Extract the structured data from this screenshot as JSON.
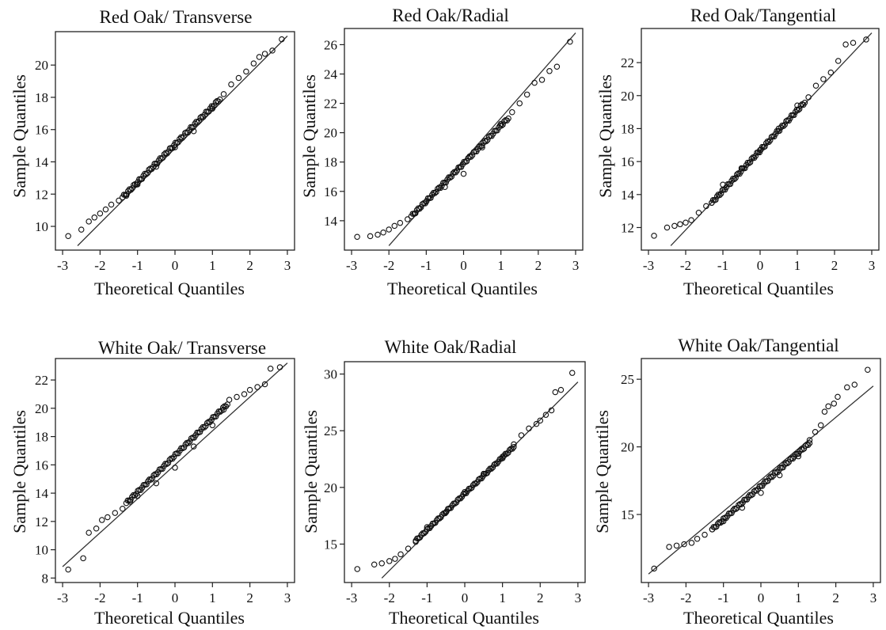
{
  "chart_data": [
    {
      "type": "scatter",
      "title": "Red Oak/ Transverse",
      "xlabel": "Theoretical Quantiles",
      "ylabel": "Sample Quantiles",
      "xlim": [
        -3,
        3
      ],
      "ylim": [
        8.8,
        21.8
      ],
      "xticks": [
        -3,
        -2,
        -1,
        0,
        1,
        2,
        3
      ],
      "yticks": [
        10,
        12,
        14,
        16,
        18,
        20
      ],
      "reference_line": [
        [
          -2.6,
          8.8
        ],
        [
          3.0,
          21.8
        ]
      ],
      "points": [
        [
          -2.85,
          9.4
        ],
        [
          -2.5,
          9.8
        ],
        [
          -2.3,
          10.3
        ],
        [
          -2.15,
          10.55
        ],
        [
          -2.0,
          10.8
        ],
        [
          -1.85,
          11.05
        ],
        [
          -1.7,
          11.35
        ],
        [
          -1.5,
          11.6
        ],
        [
          -1.3,
          11.9
        ],
        [
          -1.0,
          12.6
        ],
        [
          -0.5,
          13.7
        ],
        [
          0.0,
          14.9
        ],
        [
          0.5,
          15.9
        ],
        [
          1.0,
          17.3
        ],
        [
          1.3,
          18.2
        ],
        [
          1.5,
          18.8
        ],
        [
          1.7,
          19.2
        ],
        [
          1.9,
          19.6
        ],
        [
          2.1,
          20.1
        ],
        [
          2.25,
          20.5
        ],
        [
          2.4,
          20.7
        ],
        [
          2.6,
          20.9
        ],
        [
          2.85,
          21.6
        ]
      ],
      "dense_segments": [
        [
          -1.4,
          11.8,
          1.2,
          17.9
        ]
      ]
    },
    {
      "type": "scatter",
      "title": "Red Oak/Radial",
      "xlabel": "Theoretical Quantiles",
      "ylabel": "Sample Quantiles",
      "xlim": [
        -3,
        3
      ],
      "ylim": [
        12.3,
        26.8
      ],
      "xticks": [
        -3,
        -2,
        -1,
        0,
        1,
        2,
        3
      ],
      "yticks": [
        14,
        16,
        18,
        20,
        22,
        24,
        26
      ],
      "reference_line": [
        [
          -2.0,
          12.3
        ],
        [
          3.0,
          26.8
        ]
      ],
      "points": [
        [
          -2.85,
          12.9
        ],
        [
          -2.5,
          12.95
        ],
        [
          -2.3,
          13.05
        ],
        [
          -2.15,
          13.2
        ],
        [
          -2.0,
          13.4
        ],
        [
          -1.85,
          13.65
        ],
        [
          -1.7,
          13.85
        ],
        [
          -1.5,
          14.1
        ],
        [
          -1.3,
          14.5
        ],
        [
          -1.0,
          15.3
        ],
        [
          -0.5,
          16.3
        ],
        [
          0.0,
          17.2
        ],
        [
          0.5,
          19.0
        ],
        [
          1.0,
          20.6
        ],
        [
          1.3,
          21.4
        ],
        [
          1.5,
          22.0
        ],
        [
          1.7,
          22.6
        ],
        [
          1.9,
          23.4
        ],
        [
          2.1,
          23.6
        ],
        [
          2.3,
          24.2
        ],
        [
          2.5,
          24.5
        ],
        [
          2.85,
          26.2
        ]
      ],
      "dense_segments": [
        [
          -1.4,
          14.3,
          1.2,
          21.0
        ]
      ]
    },
    {
      "type": "scatter",
      "title": "Red Oak/Tangential",
      "xlabel": "Theoretical Quantiles",
      "ylabel": "Sample Quantiles",
      "xlim": [
        -3,
        3
      ],
      "ylim": [
        10.9,
        23.8
      ],
      "xticks": [
        -3,
        -2,
        -1,
        0,
        1,
        2,
        3
      ],
      "yticks": [
        12,
        14,
        16,
        18,
        20,
        22
      ],
      "reference_line": [
        [
          -2.4,
          10.9
        ],
        [
          3.0,
          23.8
        ]
      ],
      "points": [
        [
          -2.85,
          11.5
        ],
        [
          -2.5,
          12.0
        ],
        [
          -2.3,
          12.1
        ],
        [
          -2.15,
          12.2
        ],
        [
          -2.0,
          12.3
        ],
        [
          -1.85,
          12.45
        ],
        [
          -1.65,
          12.9
        ],
        [
          -1.45,
          13.3
        ],
        [
          -1.3,
          13.5
        ],
        [
          -1.0,
          14.6
        ],
        [
          -0.5,
          15.6
        ],
        [
          0.0,
          16.7
        ],
        [
          0.5,
          18.0
        ],
        [
          1.0,
          19.4
        ],
        [
          1.3,
          19.9
        ],
        [
          1.5,
          20.6
        ],
        [
          1.7,
          21.0
        ],
        [
          1.9,
          21.4
        ],
        [
          2.1,
          22.1
        ],
        [
          2.3,
          23.1
        ],
        [
          2.5,
          23.2
        ],
        [
          2.85,
          23.4
        ]
      ],
      "dense_segments": [
        [
          -1.3,
          13.5,
          1.2,
          19.6
        ]
      ]
    },
    {
      "type": "scatter",
      "title": "White Oak/ Transverse",
      "xlabel": "Theoretical Quantiles",
      "ylabel": "Sample Quantiles",
      "xlim": [
        -3,
        3
      ],
      "ylim": [
        8.0,
        23.2
      ],
      "xticks": [
        -3,
        -2,
        -1,
        0,
        1,
        2,
        3
      ],
      "yticks": [
        8,
        10,
        12,
        14,
        16,
        18,
        20,
        22
      ],
      "reference_line": [
        [
          -3.0,
          8.8
        ],
        [
          3.0,
          23.2
        ]
      ],
      "points": [
        [
          -2.85,
          8.6
        ],
        [
          -2.45,
          9.4
        ],
        [
          -2.3,
          11.2
        ],
        [
          -2.1,
          11.5
        ],
        [
          -1.95,
          12.1
        ],
        [
          -1.8,
          12.3
        ],
        [
          -1.6,
          12.6
        ],
        [
          -1.4,
          12.9
        ],
        [
          -1.2,
          13.4
        ],
        [
          -1.0,
          13.8
        ],
        [
          -0.5,
          14.7
        ],
        [
          0.0,
          15.8
        ],
        [
          0.5,
          17.3
        ],
        [
          1.0,
          18.8
        ],
        [
          1.3,
          19.9
        ],
        [
          1.45,
          20.6
        ],
        [
          1.65,
          20.8
        ],
        [
          1.85,
          21.0
        ],
        [
          2.0,
          21.3
        ],
        [
          2.2,
          21.5
        ],
        [
          2.4,
          21.7
        ],
        [
          2.55,
          22.8
        ],
        [
          2.8,
          22.9
        ]
      ],
      "dense_segments": [
        [
          -1.3,
          13.3,
          1.4,
          20.3
        ]
      ]
    },
    {
      "type": "scatter",
      "title": "White Oak/Radial",
      "xlabel": "Theoretical Quantiles",
      "ylabel": "Sample Quantiles",
      "xlim": [
        -3,
        3
      ],
      "ylim": [
        12.0,
        30.7
      ],
      "xticks": [
        -3,
        -2,
        -1,
        0,
        1,
        2,
        3
      ],
      "yticks": [
        15,
        20,
        25,
        30
      ],
      "reference_line": [
        [
          -2.2,
          12.0
        ],
        [
          3.0,
          29.3
        ]
      ],
      "points": [
        [
          -2.85,
          12.8
        ],
        [
          -2.4,
          13.2
        ],
        [
          -2.2,
          13.3
        ],
        [
          -2.0,
          13.5
        ],
        [
          -1.85,
          13.7
        ],
        [
          -1.7,
          14.1
        ],
        [
          -1.5,
          14.6
        ],
        [
          -1.3,
          15.2
        ],
        [
          -1.0,
          16.5
        ],
        [
          -0.5,
          17.8
        ],
        [
          0.0,
          19.6
        ],
        [
          0.5,
          21.2
        ],
        [
          1.0,
          22.7
        ],
        [
          1.3,
          23.8
        ],
        [
          1.5,
          24.6
        ],
        [
          1.7,
          25.2
        ],
        [
          1.9,
          25.6
        ],
        [
          2.0,
          25.9
        ],
        [
          2.15,
          26.4
        ],
        [
          2.3,
          26.8
        ],
        [
          2.4,
          28.4
        ],
        [
          2.55,
          28.6
        ],
        [
          2.85,
          30.1
        ]
      ],
      "dense_segments": [
        [
          -1.3,
          15.3,
          1.3,
          23.6
        ]
      ]
    },
    {
      "type": "scatter",
      "title": "White Oak/Tangential",
      "xlabel": "Theoretical Quantiles",
      "ylabel": "Sample Quantiles",
      "xlim": [
        -3,
        3
      ],
      "ylim": [
        10.3,
        26.2
      ],
      "xticks": [
        -3,
        -2,
        -1,
        0,
        1,
        2,
        3
      ],
      "yticks": [
        15,
        20,
        25
      ],
      "reference_line": [
        [
          -3.0,
          10.6
        ],
        [
          3.0,
          24.5
        ]
      ],
      "points": [
        [
          -2.85,
          11.0
        ],
        [
          -2.45,
          12.6
        ],
        [
          -2.25,
          12.7
        ],
        [
          -2.05,
          12.8
        ],
        [
          -1.85,
          12.9
        ],
        [
          -1.7,
          13.2
        ],
        [
          -1.5,
          13.5
        ],
        [
          -1.3,
          13.9
        ],
        [
          -1.0,
          14.5
        ],
        [
          -0.5,
          15.5
        ],
        [
          0.0,
          16.6
        ],
        [
          0.5,
          17.9
        ],
        [
          1.0,
          19.3
        ],
        [
          1.3,
          20.5
        ],
        [
          1.45,
          21.1
        ],
        [
          1.6,
          21.6
        ],
        [
          1.7,
          22.6
        ],
        [
          1.8,
          23.0
        ],
        [
          1.95,
          23.2
        ],
        [
          2.05,
          23.7
        ],
        [
          2.3,
          24.4
        ],
        [
          2.5,
          24.6
        ],
        [
          2.85,
          25.7
        ]
      ],
      "dense_segments": [
        [
          -1.3,
          13.9,
          1.3,
          20.3
        ]
      ]
    }
  ]
}
